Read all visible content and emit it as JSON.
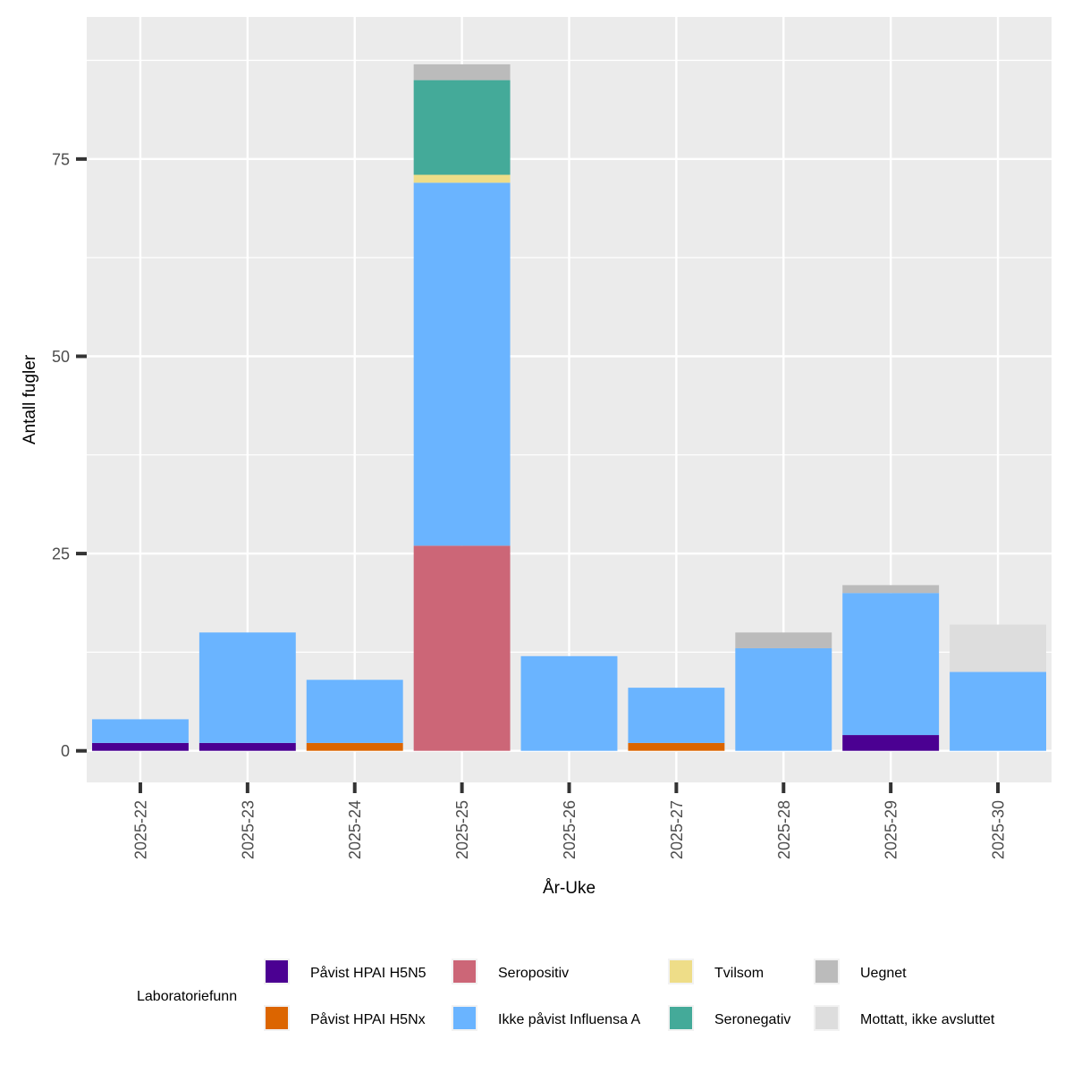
{
  "chart_data": {
    "type": "bar",
    "stacked": true,
    "xlabel": "År-Uke",
    "ylabel": "Antall fugler",
    "ylim": [
      -4,
      93
    ],
    "yticks": [
      0,
      25,
      50,
      75
    ],
    "grid": true,
    "legend_position": "bottom",
    "legend_title": "Laboratoriefunn",
    "categories": [
      "2025-22",
      "2025-23",
      "2025-24",
      "2025-25",
      "2025-26",
      "2025-27",
      "2025-28",
      "2025-29",
      "2025-30"
    ],
    "series": [
      {
        "name": "Påvist HPAI H5N5",
        "color": "#4B0092",
        "values": [
          1,
          1,
          0,
          0,
          0,
          0,
          0,
          2,
          0
        ]
      },
      {
        "name": "Påvist HPAI H5Nx",
        "color": "#DC6500",
        "values": [
          0,
          0,
          1,
          0,
          0,
          1,
          0,
          0,
          0
        ]
      },
      {
        "name": "Seropositiv",
        "color": "#CC6677",
        "values": [
          0,
          0,
          0,
          26,
          0,
          0,
          0,
          0,
          0
        ]
      },
      {
        "name": "Ikke påvist Influensa A",
        "color": "#6AB4FF",
        "values": [
          3,
          14,
          8,
          46,
          12,
          7,
          13,
          18,
          10
        ]
      },
      {
        "name": "Tvilsom",
        "color": "#EEDD88",
        "values": [
          0,
          0,
          0,
          1,
          0,
          0,
          0,
          0,
          0
        ]
      },
      {
        "name": "Seronegativ",
        "color": "#44AA99",
        "values": [
          0,
          0,
          0,
          12,
          0,
          0,
          0,
          0,
          0
        ]
      },
      {
        "name": "Uegnet",
        "color": "#BBBBBB",
        "values": [
          0,
          0,
          0,
          2,
          0,
          0,
          2,
          1,
          0
        ]
      },
      {
        "name": "Mottatt, ikke avsluttet",
        "color": "#DDDDDD",
        "values": [
          0,
          0,
          0,
          0,
          0,
          0,
          0,
          0,
          6
        ]
      }
    ],
    "legend_order": [
      "Påvist HPAI H5N5",
      "Påvist HPAI H5Nx",
      "Seropositiv",
      "Ikke påvist Influensa A",
      "Tvilsom",
      "Seronegativ",
      "Uegnet",
      "Mottatt, ikke avsluttet"
    ],
    "panel_background": "#EBEBEB",
    "grid_color": "#FFFFFF"
  }
}
